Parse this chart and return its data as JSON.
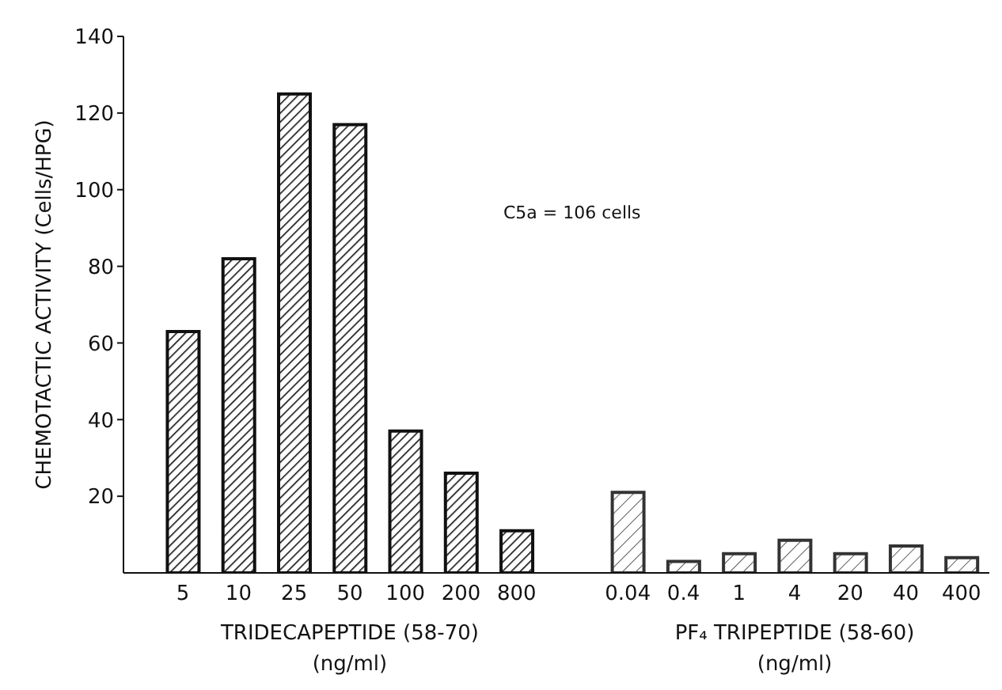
{
  "chart_data": {
    "type": "bar",
    "ylabel": "CHEMOTACTIC ACTIVITY (Cells/HPG)",
    "xlabel": "TRIDECAPEPTIDE (58-70)\n(ng/ml)",
    "categories": [
      "5",
      "10",
      "25",
      "50",
      "100",
      "200",
      "800",
      null,
      "0.04",
      "0.4",
      "1",
      "4",
      "20",
      "40",
      "400"
    ],
    "values": [
      63,
      82,
      125,
      117,
      37,
      26,
      11,
      null,
      21,
      3,
      5,
      8.5,
      5,
      7,
      4
    ],
    "colors": [
      "#111111",
      "#111111",
      "#111111",
      "#111111",
      "#111111",
      "#111111",
      "#111111",
      "#111111",
      "#333333",
      "#333333",
      "#333333",
      "#333333",
      "#333333",
      "#333333",
      "#333333"
    ],
    "ylim": [
      0,
      140
    ],
    "yticks": [
      20,
      40,
      60,
      80,
      100,
      120,
      140
    ],
    "grid": false,
    "legend": false,
    "annotations": [
      "PF₄ TRIPEPTIDE (58-60)\n(ng/ml)",
      "C5a = 106 cells"
    ]
  }
}
